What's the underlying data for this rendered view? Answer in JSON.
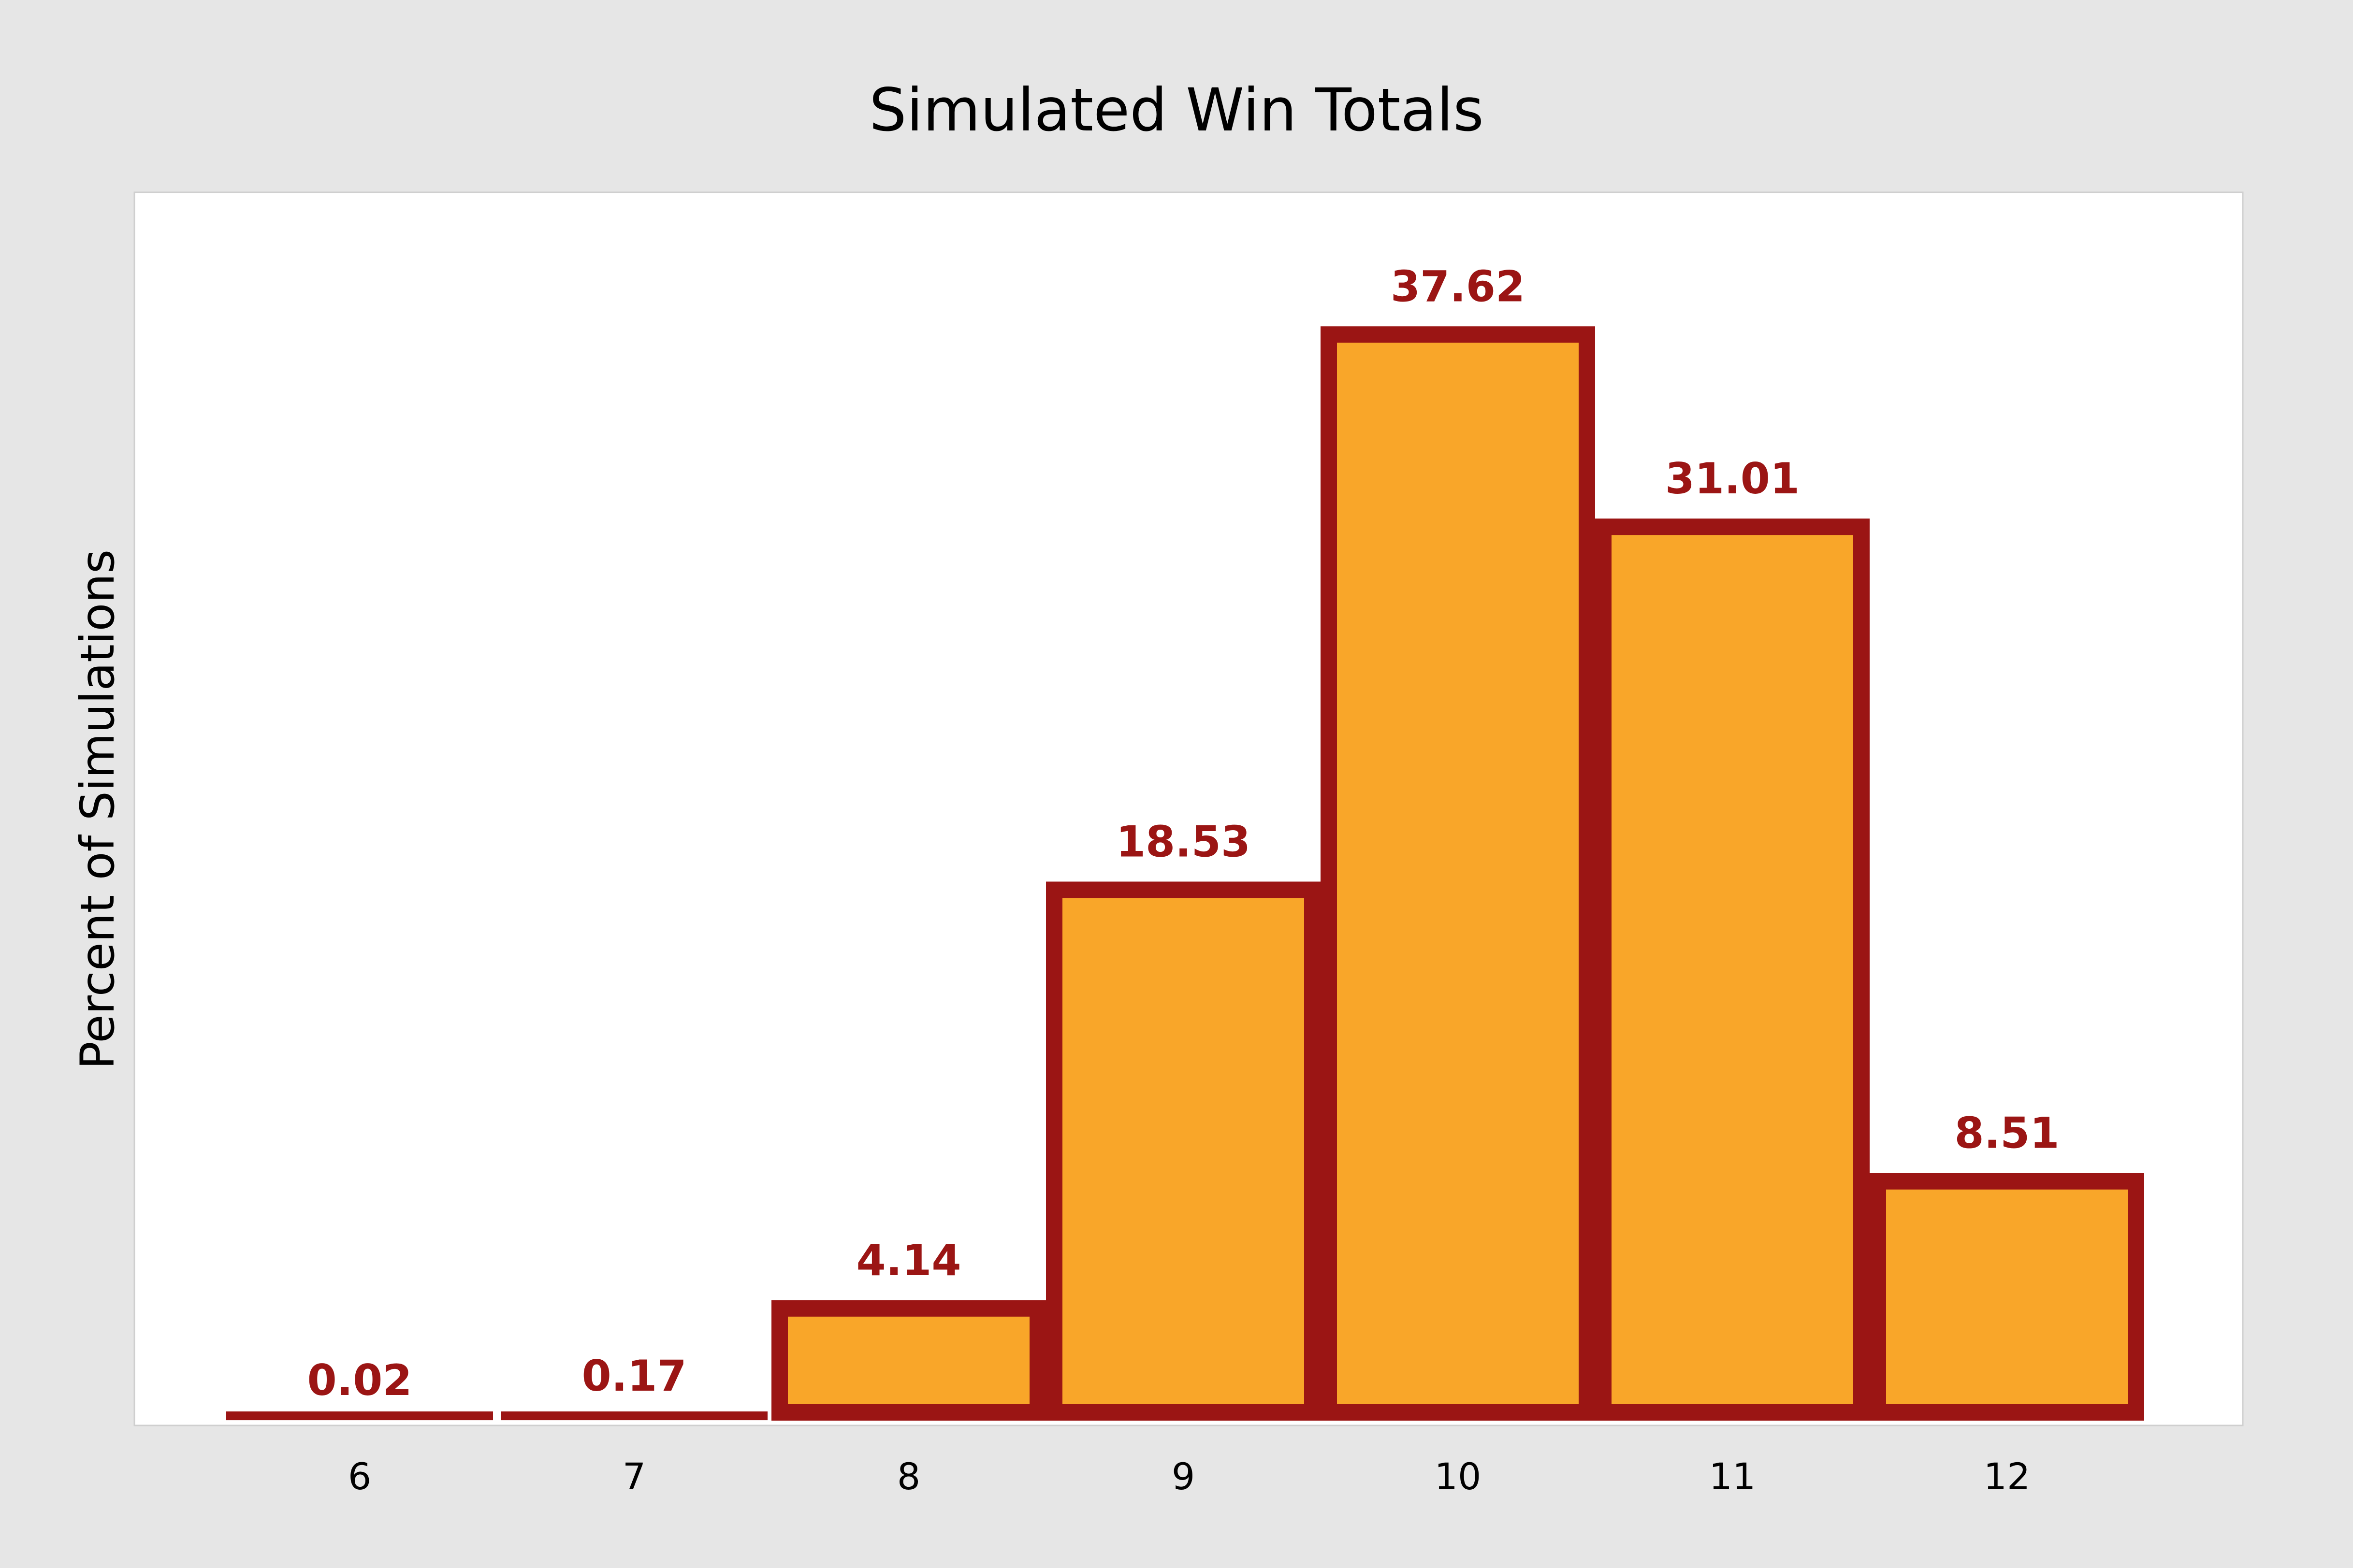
{
  "chart_data": {
    "type": "bar",
    "title": "Simulated Win Totals",
    "xlabel": "",
    "ylabel": "Percent of Simulations",
    "categories": [
      "6",
      "7",
      "8",
      "9",
      "10",
      "11",
      "12"
    ],
    "values": [
      0.02,
      0.17,
      4.14,
      18.53,
      37.62,
      31.01,
      8.51
    ],
    "data_labels": [
      "0.02",
      "0.17",
      "4.14",
      "18.53",
      "37.62",
      "31.01",
      "8.51"
    ],
    "ylim": [
      0,
      40
    ],
    "y_ticks_shown": false,
    "grid": false,
    "legend": "none",
    "colors": {
      "bar_fill": "#f9a629",
      "bar_outline": "#9b1514",
      "label_color": "#9b1514",
      "plot_background": "#ffffff",
      "figure_background": "#e6e6e6"
    }
  }
}
